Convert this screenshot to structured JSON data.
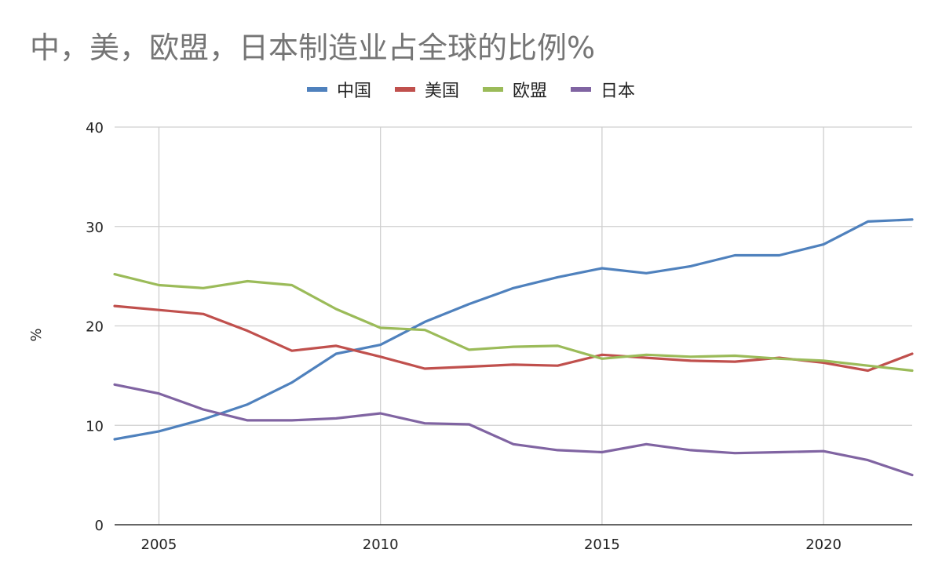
{
  "chart_data": {
    "type": "line",
    "title": "中，美，欧盟，日本制造业占全球的比例%",
    "xlabel": "",
    "ylabel": "%",
    "x": [
      2004,
      2005,
      2006,
      2007,
      2008,
      2009,
      2010,
      2011,
      2012,
      2013,
      2014,
      2015,
      2016,
      2017,
      2018,
      2019,
      2020,
      2021,
      2022
    ],
    "xlim": [
      2004,
      2022
    ],
    "xticks": [
      2005,
      2010,
      2015,
      2020
    ],
    "ylim": [
      0,
      40
    ],
    "yticks": [
      0,
      10,
      20,
      30,
      40
    ],
    "grid": true,
    "legend": "top-center",
    "series": [
      {
        "name": "中国",
        "color": "#4F81BD",
        "values": [
          8.6,
          9.4,
          10.6,
          12.1,
          14.3,
          17.2,
          18.1,
          20.4,
          22.2,
          23.8,
          24.9,
          25.8,
          25.3,
          26.0,
          27.1,
          27.1,
          28.2,
          30.5,
          30.7
        ]
      },
      {
        "name": "美国",
        "color": "#C0504D",
        "values": [
          22.0,
          21.6,
          21.2,
          19.5,
          17.5,
          18.0,
          16.9,
          15.7,
          15.9,
          16.1,
          16.0,
          17.1,
          16.8,
          16.5,
          16.4,
          16.8,
          16.3,
          15.5,
          17.2
        ]
      },
      {
        "name": "欧盟",
        "color": "#9BBB59",
        "values": [
          25.2,
          24.1,
          23.8,
          24.5,
          24.1,
          21.7,
          19.8,
          19.6,
          17.6,
          17.9,
          18.0,
          16.7,
          17.1,
          16.9,
          17.0,
          16.7,
          16.5,
          16.0,
          15.5
        ]
      },
      {
        "name": "日本",
        "color": "#8064A2",
        "values": [
          14.1,
          13.2,
          11.6,
          10.5,
          10.5,
          10.7,
          11.2,
          10.2,
          10.1,
          8.1,
          7.5,
          7.3,
          8.1,
          7.5,
          7.2,
          7.3,
          7.4,
          6.5,
          5.0
        ]
      }
    ]
  }
}
